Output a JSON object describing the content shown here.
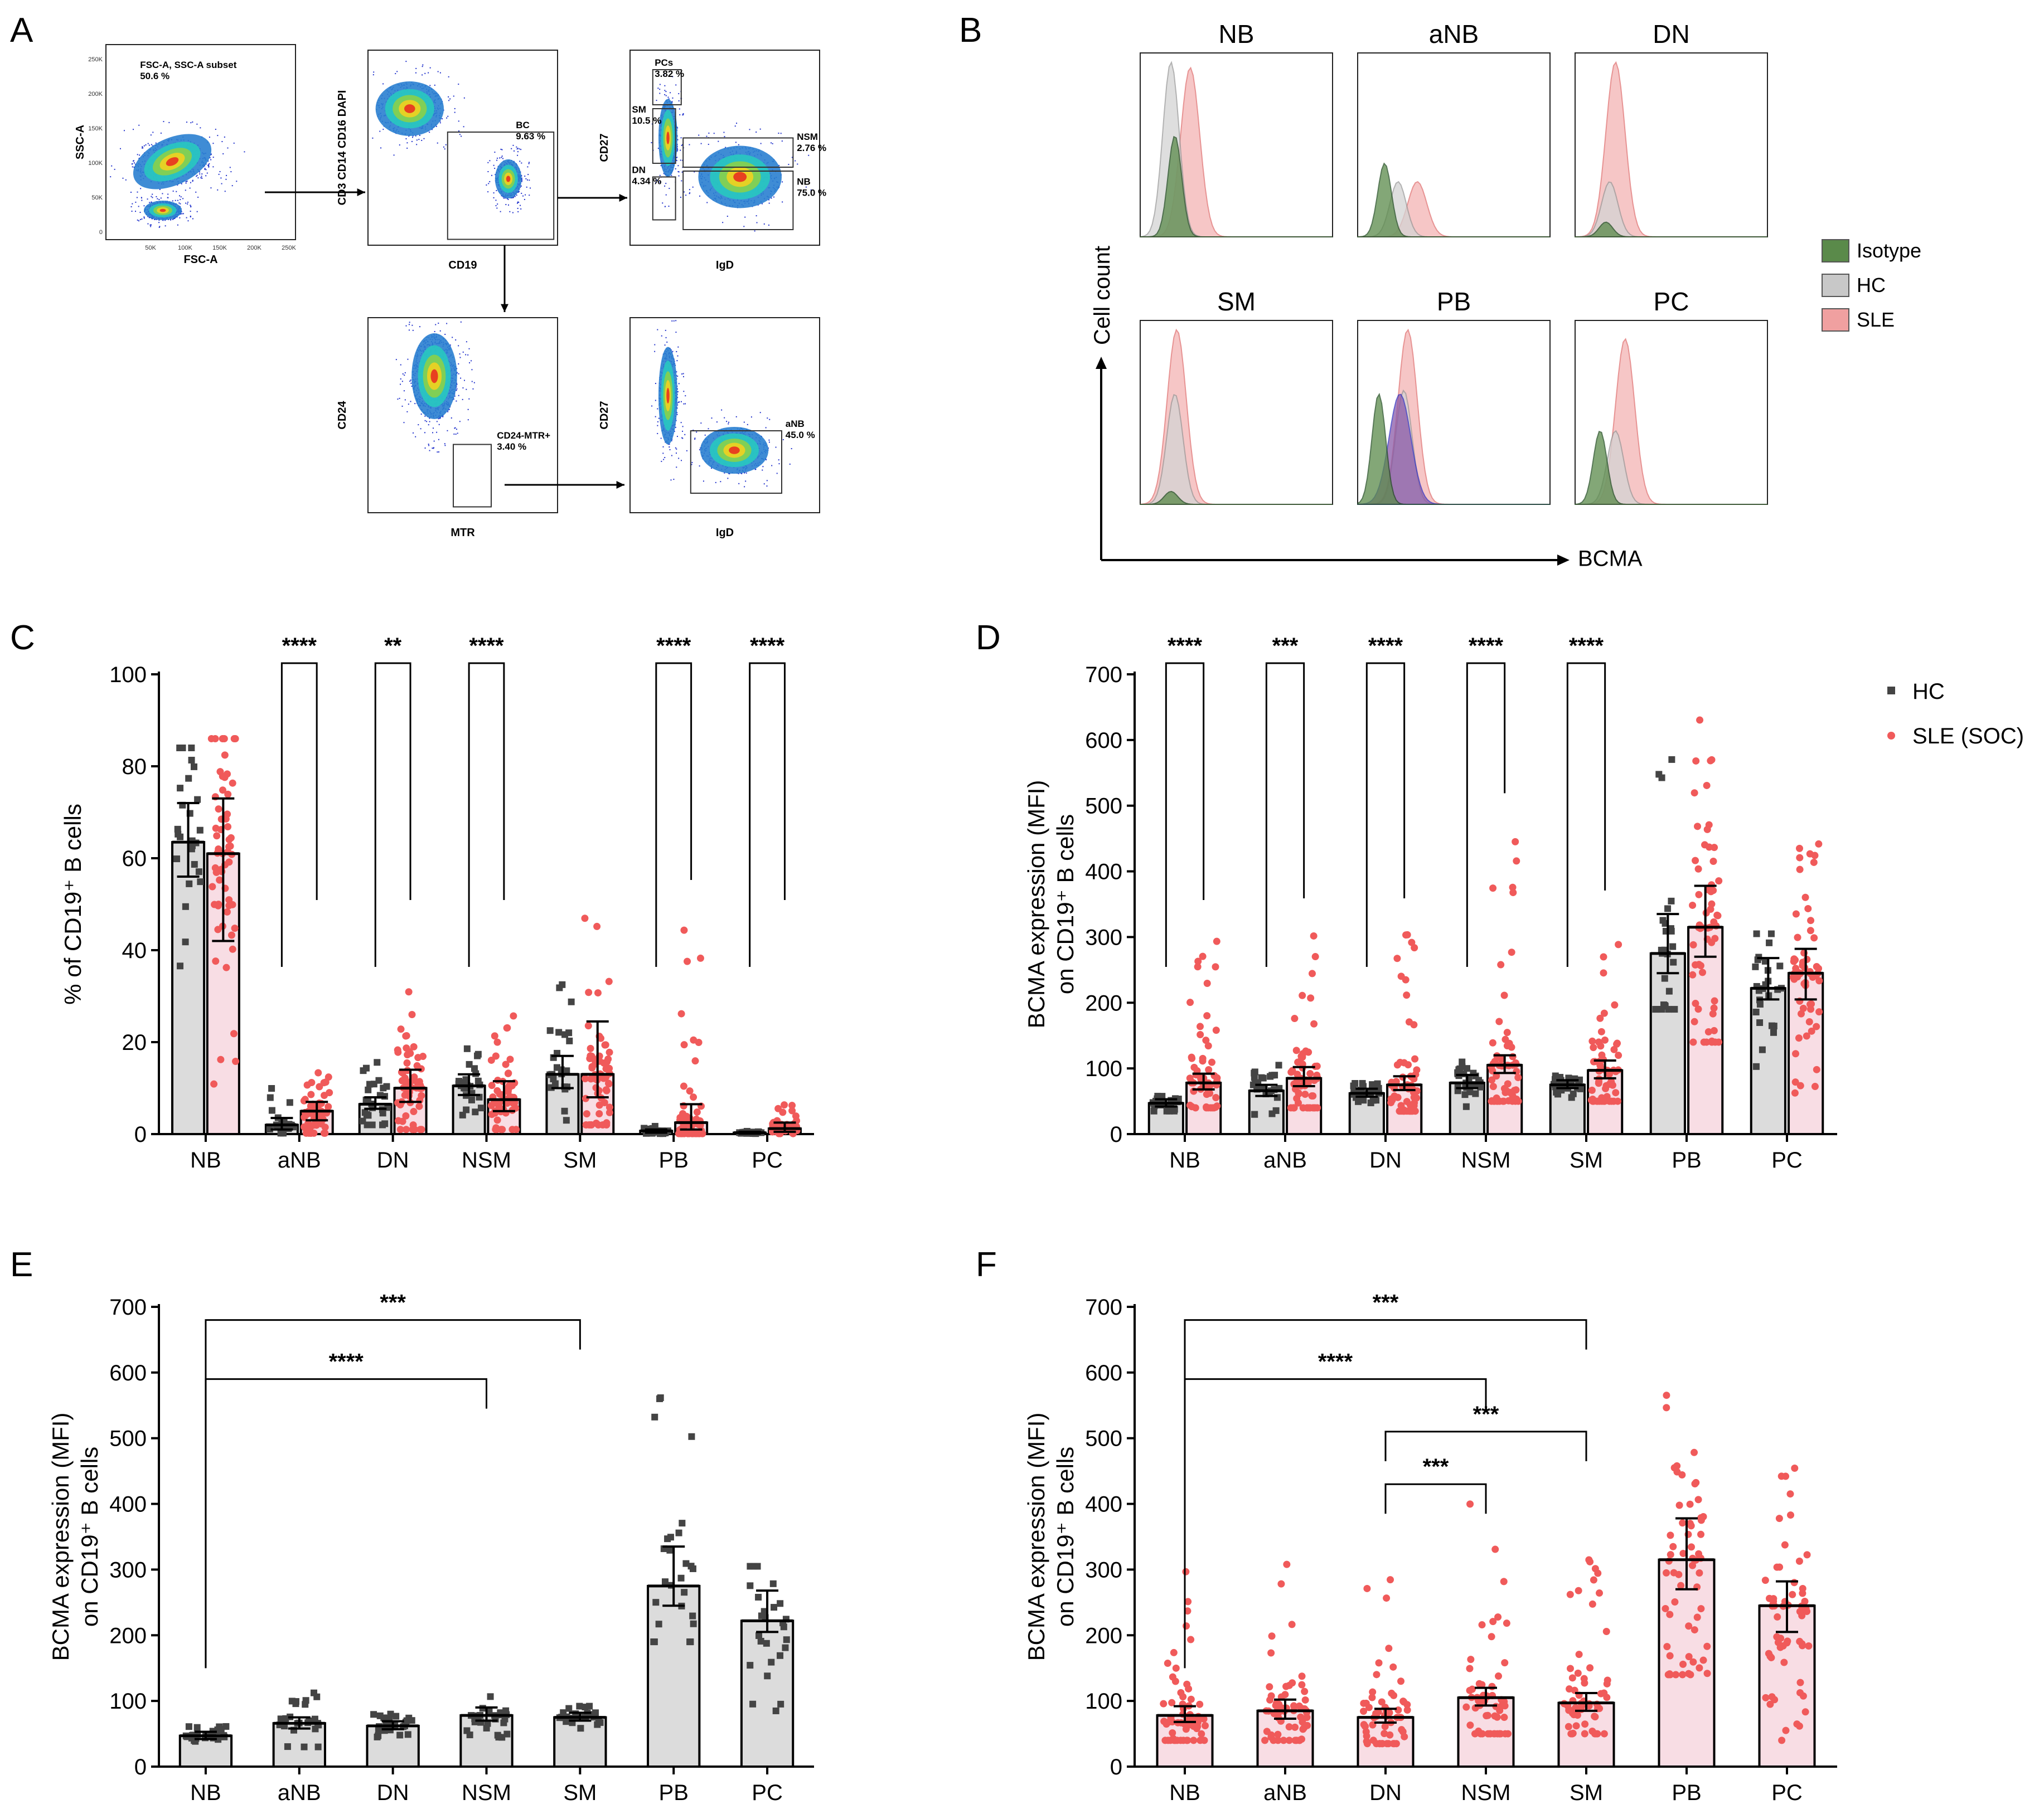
{
  "panel_labels": [
    "A",
    "B",
    "C",
    "D",
    "E",
    "F"
  ],
  "panelA": {
    "plots": [
      {
        "xlabel": "FSC-A",
        "ylabel": "SSC-A",
        "xticks": [
          "50K",
          "100K",
          "150K",
          "200K",
          "250K"
        ],
        "yticks": [
          "250K",
          "200K",
          "150K",
          "100K",
          "50K",
          "0"
        ],
        "gates": [
          {
            "label": "FSC-A, SSC-A subset",
            "value": "50.6 %"
          }
        ]
      },
      {
        "xlabel": "CD19",
        "ylabel": "CD3 CD14 CD16 DAPI",
        "gates": [
          {
            "label": "BC",
            "value": "9.63 %"
          }
        ]
      },
      {
        "xlabel": "IgD",
        "ylabel": "CD27",
        "gates": [
          {
            "label": "PCs",
            "value": "3.82 %"
          },
          {
            "label": "SM",
            "value": "10.5 %"
          },
          {
            "label": "NSM",
            "value": "2.76 %"
          },
          {
            "label": "DN",
            "value": "4.34 %"
          },
          {
            "label": "NB",
            "value": "75.0 %"
          }
        ]
      },
      {
        "xlabel": "MTR",
        "ylabel": "CD24",
        "gates": [
          {
            "label": "CD24-MTR+",
            "value": "3.40 %"
          }
        ]
      },
      {
        "xlabel": "IgD",
        "ylabel": "CD27",
        "gates": [
          {
            "label": "aNB",
            "value": "45.0 %"
          }
        ]
      }
    ]
  },
  "panelB": {
    "titles": [
      "NB",
      "aNB",
      "DN",
      "SM",
      "PB",
      "PC"
    ],
    "ylabel": "Cell count",
    "xlabel": "BCMA",
    "legend": [
      {
        "label": "Isotype",
        "color": "#5a8a4a"
      },
      {
        "label": "HC",
        "color": "#c8c8c8"
      },
      {
        "label": "SLE",
        "color": "#f0a0a0"
      }
    ]
  },
  "legend_CD": [
    {
      "label": "HC",
      "color": "#444444",
      "marker": "square"
    },
    {
      "label": "SLE (SOC)",
      "color": "#f05a5a",
      "marker": "circle"
    }
  ],
  "chart_data": [
    {
      "id": "C",
      "type": "bar",
      "categories": [
        "NB",
        "aNB",
        "DN",
        "NSM",
        "SM",
        "PB",
        "PC"
      ],
      "ylabel": "% of CD19⁺ B cells",
      "ylim": [
        0,
        100
      ],
      "yticks": [
        0,
        20,
        40,
        60,
        80,
        100
      ],
      "series": [
        {
          "name": "HC",
          "values": [
            63.5,
            2,
            6.5,
            10.5,
            13,
            0.7,
            0.3
          ],
          "err": [
            [
              56,
              72
            ],
            [
              1,
              3.5
            ],
            [
              5.5,
              8
            ],
            [
              8.5,
              13
            ],
            [
              10,
              17
            ],
            [
              0.3,
              1
            ],
            [
              0.1,
              0.5
            ]
          ],
          "npts": 26,
          "range": [
            [
              22,
              84
            ],
            [
              0.2,
              10
            ],
            [
              2,
              17
            ],
            [
              4,
              19
            ],
            [
              3,
              33
            ],
            [
              0.1,
              2
            ],
            [
              0.1,
              0.8
            ]
          ]
        },
        {
          "name": "SLE (SOC)",
          "values": [
            61,
            5,
            10,
            7.5,
            13,
            2.5,
            1.2
          ],
          "err": [
            [
              42,
              73
            ],
            [
              3,
              7
            ],
            [
              7,
              14
            ],
            [
              5,
              11.5
            ],
            [
              8,
              24.5
            ],
            [
              1,
              6.5
            ],
            [
              0.5,
              2.5
            ]
          ],
          "npts": 60,
          "range": [
            [
              4,
              86
            ],
            [
              0.2,
              21
            ],
            [
              1,
              31
            ],
            [
              1,
              26
            ],
            [
              2,
              47
            ],
            [
              0.1,
              48
            ],
            [
              0.1,
              7
            ]
          ]
        }
      ],
      "significance": [
        {
          "cat": "aNB",
          "stars": "****"
        },
        {
          "cat": "DN",
          "stars": "**"
        },
        {
          "cat": "NSM",
          "stars": "****"
        },
        {
          "cat": "PB",
          "stars": "****"
        },
        {
          "cat": "PC",
          "stars": "****"
        }
      ]
    },
    {
      "id": "D",
      "type": "bar",
      "categories": [
        "NB",
        "aNB",
        "DN",
        "NSM",
        "SM",
        "PB",
        "PC"
      ],
      "ylabel": "BCMA expression (MFI) on CD19⁺ B cells",
      "ylim": [
        0,
        700
      ],
      "yticks": [
        0,
        100,
        200,
        300,
        400,
        500,
        600,
        700
      ],
      "series": [
        {
          "name": "HC",
          "values": [
            47,
            66,
            62,
            78,
            75,
            275,
            222
          ],
          "err": [
            [
              42,
              53
            ],
            [
              58,
              75
            ],
            [
              57,
              69
            ],
            [
              70,
              90
            ],
            [
              70,
              82
            ],
            [
              245,
              335
            ],
            [
              205,
              268
            ]
          ],
          "npts": 26,
          "range": [
            [
              35,
              65
            ],
            [
              30,
              120
            ],
            [
              40,
              80
            ],
            [
              40,
              115
            ],
            [
              55,
              92
            ],
            [
              190,
              600
            ],
            [
              75,
              305
            ]
          ]
        },
        {
          "name": "SLE (SOC)",
          "values": [
            78,
            85,
            75,
            105,
            97,
            315,
            245
          ],
          "err": [
            [
              68,
              92
            ],
            [
              73,
              102
            ],
            [
              67,
              88
            ],
            [
              93,
              120
            ],
            [
              85,
              112
            ],
            [
              270,
              378
            ],
            [
              205,
              282
            ]
          ],
          "npts": 60,
          "range": [
            [
              40,
              298
            ],
            [
              40,
              308
            ],
            [
              35,
              308
            ],
            [
              50,
              468
            ],
            [
              50,
              320
            ],
            [
              140,
              655
            ],
            [
              40,
              455
            ]
          ]
        }
      ],
      "significance": [
        {
          "cat": "NB",
          "stars": "****"
        },
        {
          "cat": "aNB",
          "stars": "***"
        },
        {
          "cat": "DN",
          "stars": "****"
        },
        {
          "cat": "NSM",
          "stars": "****"
        },
        {
          "cat": "SM",
          "stars": "****"
        }
      ]
    },
    {
      "id": "E",
      "type": "bar",
      "categories": [
        "NB",
        "aNB",
        "DN",
        "NSM",
        "SM",
        "PB",
        "PC"
      ],
      "ylabel": "BCMA expression (MFI) on CD19⁺ B cells",
      "ylim": [
        0,
        700
      ],
      "yticks": [
        0,
        100,
        200,
        300,
        400,
        500,
        600,
        700
      ],
      "series": [
        {
          "name": "HC",
          "values": [
            47,
            66,
            62,
            78,
            75,
            275,
            222
          ],
          "err": [
            [
              42,
              53
            ],
            [
              58,
              75
            ],
            [
              57,
              69
            ],
            [
              70,
              90
            ],
            [
              70,
              82
            ],
            [
              245,
              335
            ],
            [
              205,
              268
            ]
          ],
          "npts": 26,
          "range": [
            [
              35,
              65
            ],
            [
              30,
              120
            ],
            [
              40,
              80
            ],
            [
              40,
              115
            ],
            [
              55,
              92
            ],
            [
              190,
              600
            ],
            [
              75,
              305
            ]
          ]
        }
      ],
      "brackets": [
        {
          "from": "NB",
          "to": "SM",
          "stars": "***"
        },
        {
          "from": "NB",
          "to": "NSM",
          "stars": "****"
        }
      ]
    },
    {
      "id": "F",
      "type": "bar",
      "categories": [
        "NB",
        "aNB",
        "DN",
        "NSM",
        "SM",
        "PB",
        "PC"
      ],
      "ylabel": "BCMA expression (MFI) on CD19⁺ B cells",
      "ylim": [
        0,
        700
      ],
      "yticks": [
        0,
        100,
        200,
        300,
        400,
        500,
        600,
        700
      ],
      "series": [
        {
          "name": "SLE (SOC)",
          "values": [
            78,
            85,
            75,
            105,
            97,
            315,
            245
          ],
          "err": [
            [
              68,
              92
            ],
            [
              73,
              102
            ],
            [
              67,
              88
            ],
            [
              93,
              120
            ],
            [
              85,
              112
            ],
            [
              270,
              378
            ],
            [
              205,
              282
            ]
          ],
          "npts": 60,
          "range": [
            [
              40,
              298
            ],
            [
              40,
              308
            ],
            [
              35,
              308
            ],
            [
              50,
              468
            ],
            [
              50,
              320
            ],
            [
              140,
              655
            ],
            [
              40,
              455
            ]
          ]
        }
      ],
      "brackets": [
        {
          "from": "NB",
          "to": "SM",
          "stars": "***"
        },
        {
          "from": "NB",
          "to": "NSM",
          "stars": "****"
        },
        {
          "from": "DN",
          "to": "SM",
          "stars": "***"
        },
        {
          "from": "DN",
          "to": "NSM",
          "stars": "***"
        }
      ]
    }
  ]
}
